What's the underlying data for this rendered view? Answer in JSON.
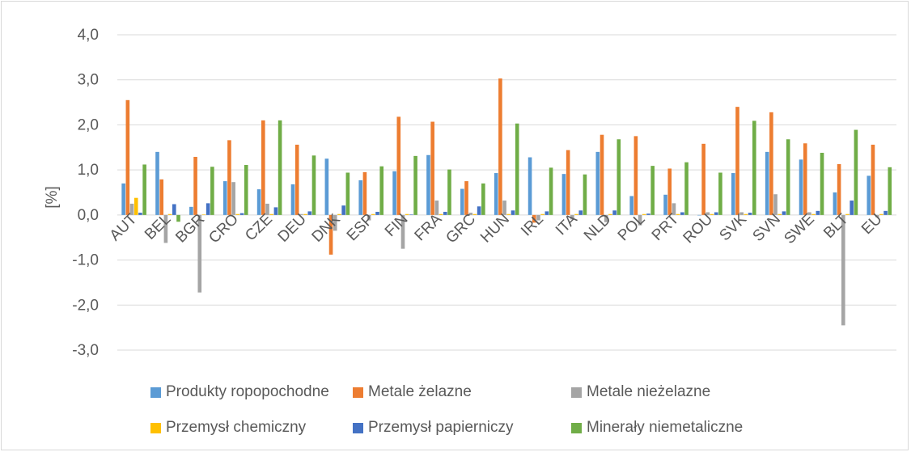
{
  "chart_data": {
    "type": "bar",
    "title": "",
    "xlabel": "",
    "ylabel": "[%]",
    "ylim": [
      -3.0,
      4.0
    ],
    "yticks": [
      "4,0",
      "3,0",
      "2,0",
      "1,0",
      "0,0",
      "-1,0",
      "-2,0",
      "-3,0"
    ],
    "grid": true,
    "legend_position": "bottom",
    "categories": [
      "AUT",
      "BEL",
      "BGR",
      "CRO",
      "CZE",
      "DEU",
      "DNK",
      "ESP",
      "FIN",
      "FRA",
      "GRC",
      "HUN",
      "IRL",
      "ITA",
      "NLD",
      "POL",
      "PRT",
      "ROU",
      "SVK",
      "SVN",
      "SWE",
      "BLT",
      "EU"
    ],
    "series": [
      {
        "name": "Produkty ropopochodne",
        "color": "#5b9bd5",
        "values": [
          0.7,
          1.4,
          0.18,
          0.75,
          0.57,
          0.68,
          1.25,
          0.77,
          0.97,
          1.33,
          0.58,
          0.93,
          1.28,
          0.91,
          1.4,
          0.42,
          0.45,
          0.0,
          0.93,
          1.4,
          1.23,
          0.5,
          0.87
        ]
      },
      {
        "name": "Metale żelazne",
        "color": "#ed7d31",
        "values": [
          2.55,
          0.79,
          1.29,
          1.66,
          2.1,
          1.56,
          -0.88,
          0.95,
          2.18,
          2.07,
          0.75,
          3.03,
          -0.17,
          1.44,
          1.78,
          1.75,
          1.03,
          1.58,
          2.4,
          2.28,
          1.59,
          1.13,
          1.56
        ]
      },
      {
        "name": "Metale nieżelazne",
        "color": "#a5a5a5",
        "values": [
          0.25,
          -0.62,
          -1.72,
          0.73,
          0.25,
          0.02,
          -0.35,
          -0.12,
          -0.75,
          0.32,
          0.05,
          0.32,
          -0.12,
          -0.1,
          -0.16,
          -0.23,
          0.26,
          0.06,
          0.06,
          0.46,
          0.06,
          -2.45,
          -0.05
        ]
      },
      {
        "name": "Przemysł chemiczny",
        "color": "#ffc000",
        "values": [
          0.38,
          0.02,
          0.01,
          0.02,
          0.02,
          0.02,
          0.02,
          0.02,
          0.02,
          0.02,
          0.02,
          0.02,
          0.02,
          0.02,
          0.02,
          0.02,
          0.02,
          0.02,
          0.02,
          0.02,
          0.02,
          0.02,
          0.02
        ]
      },
      {
        "name": "Przemysł papierniczy",
        "color": "#4472c4",
        "values": [
          0.05,
          0.24,
          0.26,
          0.04,
          0.17,
          0.08,
          0.21,
          0.07,
          0.01,
          0.07,
          0.19,
          0.1,
          0.08,
          0.1,
          0.1,
          0.03,
          0.06,
          0.06,
          0.05,
          0.08,
          0.09,
          0.32,
          0.09
        ]
      },
      {
        "name": "Minerały niemetaliczne",
        "color": "#70ad47",
        "values": [
          1.12,
          -0.15,
          1.07,
          1.11,
          2.1,
          1.32,
          0.94,
          1.08,
          1.31,
          1.01,
          0.7,
          2.03,
          1.05,
          0.9,
          1.68,
          1.09,
          1.17,
          0.94,
          2.09,
          1.68,
          1.38,
          1.89,
          1.06
        ]
      }
    ]
  }
}
